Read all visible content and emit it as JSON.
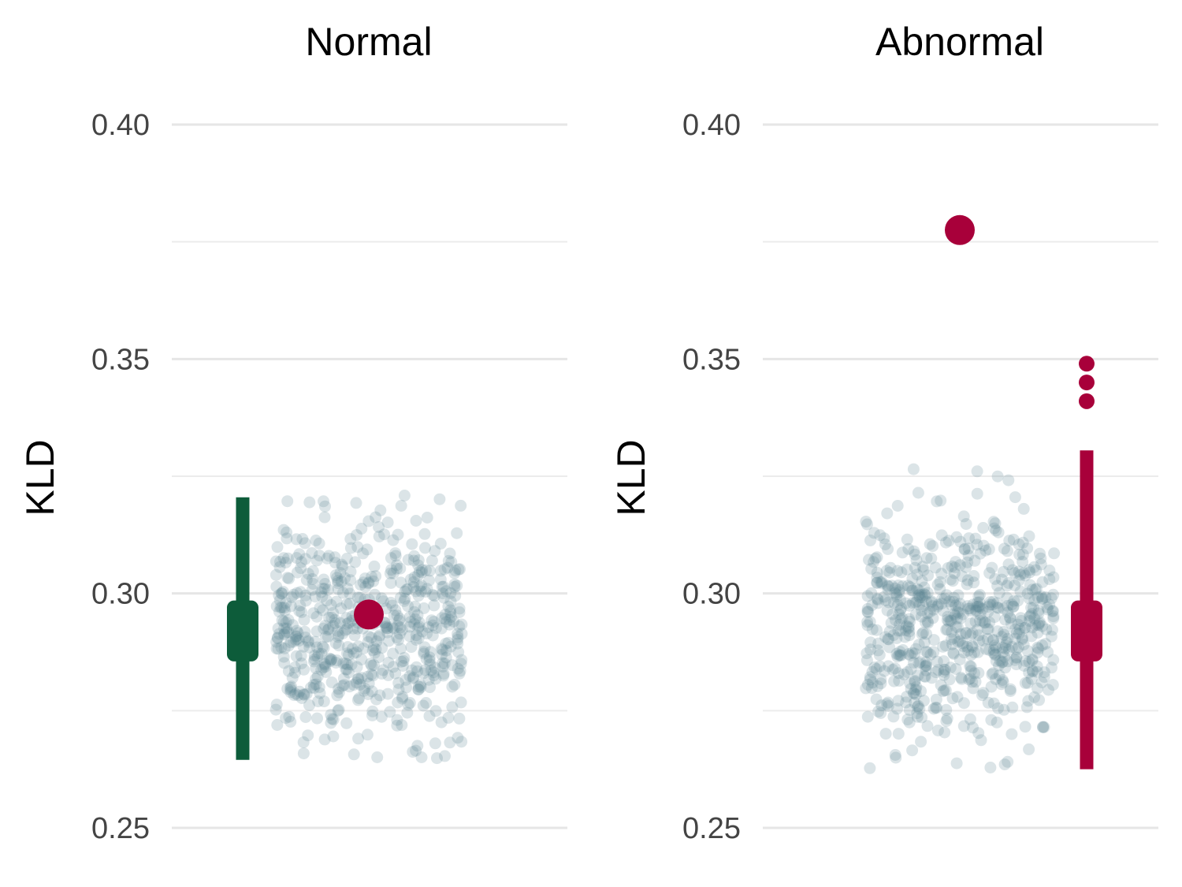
{
  "chart_data": [
    {
      "type": "scatter",
      "title": "Normal",
      "ylabel": "KLD",
      "ylim": [
        0.25,
        0.4
      ],
      "y_ticks": [
        "0.25",
        "0.30",
        "0.35",
        "0.40"
      ],
      "grid": true,
      "colors": {
        "accent": "#0d5c3a",
        "observed": "#a8003a",
        "jitter": "#5b8593"
      },
      "observed_value": 0.2955,
      "interval": {
        "lower": 0.2645,
        "upper": 0.3205,
        "inner_lower": 0.2855,
        "inner_upper": 0.2985,
        "median": 0.292
      },
      "jitter_summary": {
        "center": 0.292,
        "spread": 0.0115,
        "count": 600,
        "min": 0.264,
        "max": 0.321
      },
      "outliers": []
    },
    {
      "type": "scatter",
      "title": "Abnormal",
      "ylabel": "KLD",
      "ylim": [
        0.25,
        0.4
      ],
      "y_ticks": [
        "0.25",
        "0.30",
        "0.35",
        "0.40"
      ],
      "grid": true,
      "colors": {
        "accent": "#a8003a",
        "observed": "#a8003a",
        "jitter": "#5b8593"
      },
      "observed_value": 0.3775,
      "interval": {
        "lower": 0.2625,
        "upper": 0.3305,
        "inner_lower": 0.2855,
        "inner_upper": 0.2985,
        "median": 0.292
      },
      "jitter_summary": {
        "center": 0.293,
        "spread": 0.0115,
        "count": 650,
        "min": 0.2625,
        "max": 0.349
      },
      "outliers": [
        0.349,
        0.345,
        0.341
      ]
    }
  ]
}
